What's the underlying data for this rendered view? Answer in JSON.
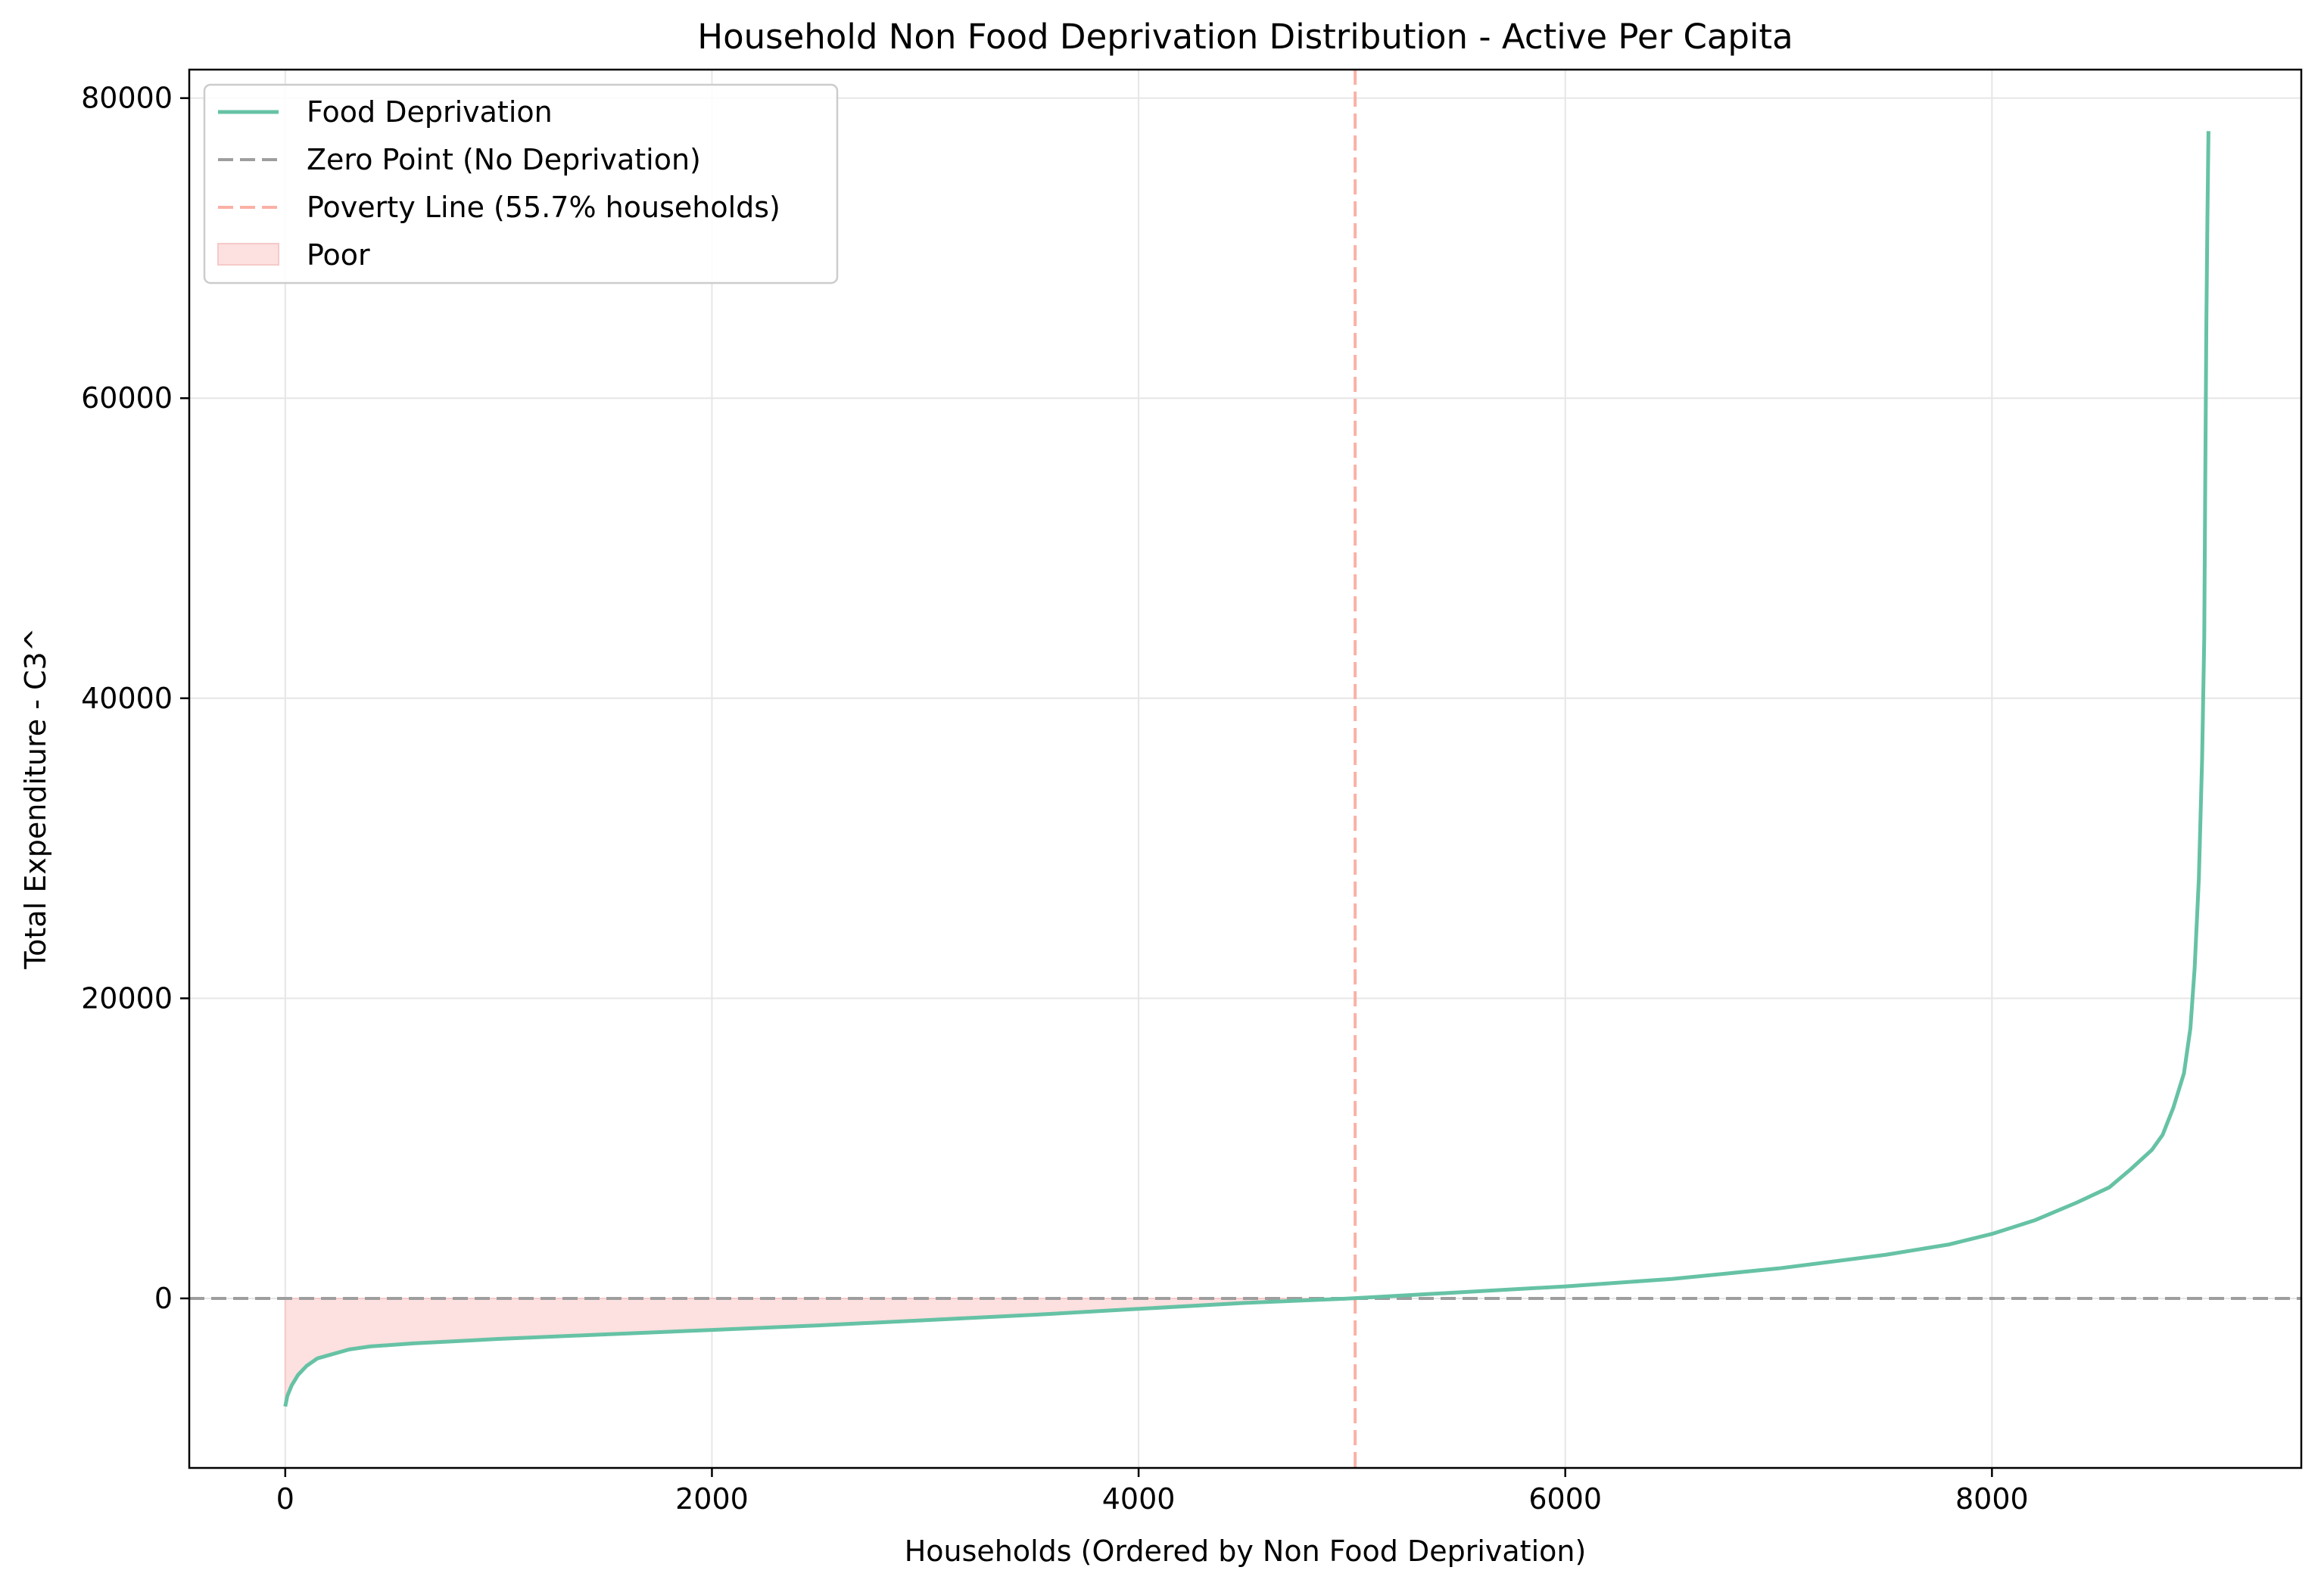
{
  "chart_data": {
    "type": "line",
    "title": "Household Non Food Deprivation Distribution - Active Per Capita",
    "xlabel": "Households (Ordered by Non Food Deprivation)",
    "ylabel": "Total Expenditure - C3^",
    "xlim": [
      -450,
      9450
    ],
    "ylim": [
      -11300,
      81900
    ],
    "x_ticks": [
      0,
      2000,
      4000,
      6000,
      8000
    ],
    "y_ticks": [
      0,
      20000,
      40000,
      60000,
      80000
    ],
    "x_tick_labels": [
      "0",
      "2000",
      "4000",
      "6000",
      "8000"
    ],
    "y_tick_labels": [
      "0",
      "20000",
      "40000",
      "60000",
      "80000"
    ],
    "grid": true,
    "legend_position": "top-left",
    "legend": [
      {
        "label": "Food Deprivation",
        "kind": "line"
      },
      {
        "label": "Zero Point (No Deprivation)",
        "kind": "dashed-line"
      },
      {
        "label": "Poverty Line (55.7% households)",
        "kind": "dashed-line"
      },
      {
        "label": "Poor",
        "kind": "area"
      }
    ],
    "series": [
      {
        "name": "Food Deprivation",
        "color": "#66c2a5",
        "x": [
          0,
          10,
          30,
          60,
          100,
          150,
          200,
          300,
          400,
          600,
          800,
          1000,
          1500,
          2000,
          2500,
          3000,
          3500,
          4000,
          4500,
          5000,
          5500,
          6000,
          6500,
          7000,
          7500,
          7800,
          8000,
          8200,
          8400,
          8550,
          8650,
          8750,
          8800,
          8850,
          8900,
          8930,
          8950,
          8970,
          8985,
          8995,
          9000,
          9005,
          9010,
          9015
        ],
        "y": [
          -7200,
          -6500,
          -5800,
          -5100,
          -4500,
          -4000,
          -3800,
          -3400,
          -3200,
          -3000,
          -2850,
          -2700,
          -2400,
          -2100,
          -1800,
          -1450,
          -1100,
          -700,
          -300,
          0,
          400,
          800,
          1300,
          2000,
          2900,
          3600,
          4300,
          5200,
          6400,
          7400,
          8600,
          9900,
          10900,
          12700,
          15000,
          18000,
          22000,
          28000,
          36000,
          44000,
          55000,
          65000,
          72000,
          77800
        ]
      }
    ],
    "reference_lines": [
      {
        "name": "Zero Point (No Deprivation)",
        "orientation": "horizontal",
        "value": 0,
        "color": "#999999"
      },
      {
        "name": "Poverty Line (55.7% households)",
        "orientation": "vertical",
        "value": 5015,
        "color": "#fca699"
      }
    ],
    "area": {
      "name": "Poor",
      "from_x": 0,
      "to_x": 5015,
      "color": "#fddede"
    }
  }
}
